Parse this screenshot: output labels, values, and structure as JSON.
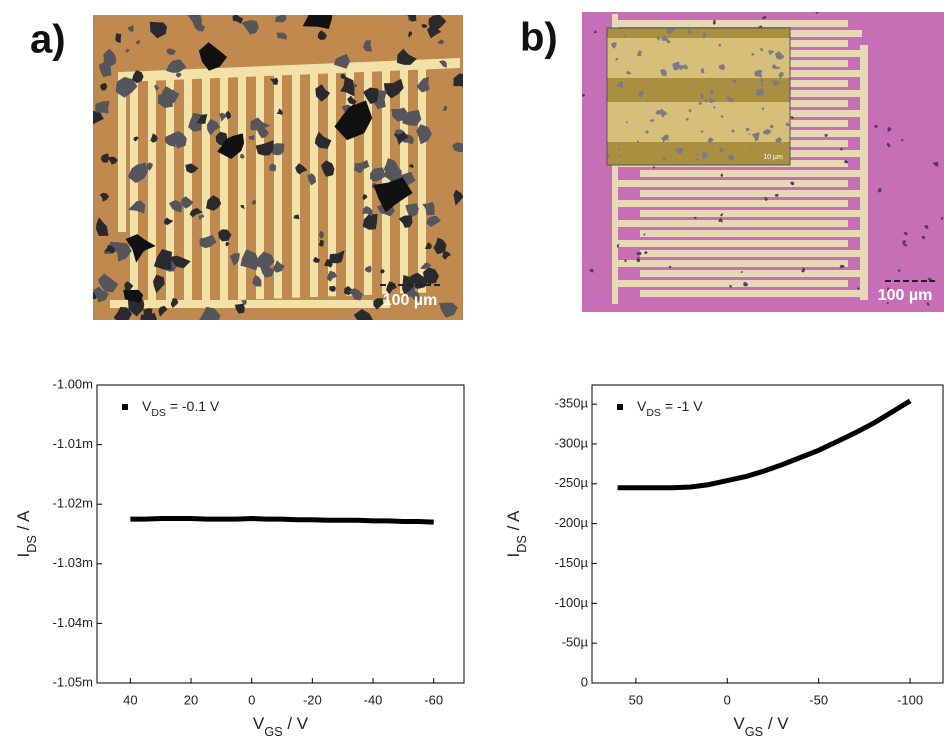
{
  "panels": [
    {
      "label": "a)",
      "scale_bar": "100 µm"
    },
    {
      "label": "b)",
      "scale_bar": "100 µm",
      "inset_scale_bar": "10 µm"
    }
  ],
  "chart_data": [
    {
      "type": "line",
      "x_label": "VGS / V",
      "y_label": "IDS / A",
      "xlim": [
        51,
        -70
      ],
      "xticks": [
        40,
        20,
        0,
        -20,
        -40,
        -60
      ],
      "ylim": [
        -0.00105,
        -0.001
      ],
      "yticks": [
        {
          "value": -0.001,
          "label": "-1.00m"
        },
        {
          "value": -0.00101,
          "label": "-1.01m"
        },
        {
          "value": -0.00102,
          "label": "-1.02m"
        },
        {
          "value": -0.00103,
          "label": "-1.03m"
        },
        {
          "value": -0.00104,
          "label": "-1.04m"
        },
        {
          "value": -0.00105,
          "label": "-1.05m"
        }
      ],
      "legend": "upper left",
      "x": [
        40,
        35,
        30,
        25,
        20,
        15,
        10,
        5,
        0,
        -5,
        -10,
        -15,
        -20,
        -25,
        -30,
        -35,
        -40,
        -45,
        -50,
        -55,
        -60
      ],
      "series": [
        {
          "name": "VDS = -0.1 V",
          "color": "#000000",
          "values": [
            -0.0010225,
            -0.0010225,
            -0.0010224,
            -0.0010224,
            -0.0010224,
            -0.0010225,
            -0.0010225,
            -0.0010225,
            -0.0010224,
            -0.0010225,
            -0.0010225,
            -0.0010226,
            -0.0010226,
            -0.0010227,
            -0.0010227,
            -0.0010227,
            -0.0010228,
            -0.0010228,
            -0.0010229,
            -0.0010229,
            -0.001023
          ]
        }
      ]
    },
    {
      "type": "line",
      "x_label": "VGS / V",
      "y_label": "IDS / A",
      "xlim": [
        74,
        -118
      ],
      "xticks": [
        50,
        0,
        -50,
        -100
      ],
      "ylim": [
        0,
        -0.000374
      ],
      "yticks": [
        0,
        {
          "value": -5e-05,
          "label": "-50µ"
        },
        {
          "value": -0.0001,
          "label": "-100µ"
        },
        {
          "value": -0.00015,
          "label": "-150µ"
        },
        {
          "value": -0.0002,
          "label": "-200µ"
        },
        {
          "value": -0.00025,
          "label": "-250µ"
        },
        {
          "value": -0.0003,
          "label": "-300µ"
        },
        {
          "value": -0.00035,
          "label": "-350µ"
        }
      ],
      "legend": "upper left",
      "x": [
        60,
        50,
        40,
        30,
        20,
        10,
        0,
        -10,
        -20,
        -30,
        -40,
        -50,
        -60,
        -70,
        -80,
        -90,
        -100
      ],
      "series": [
        {
          "name": "VDS = -1 V",
          "color": "#000000",
          "values": [
            -0.000245,
            -0.000245,
            -0.000245,
            -0.000245,
            -0.000246,
            -0.000249,
            -0.000254,
            -0.000259,
            -0.000266,
            -0.000274,
            -0.000283,
            -0.000292,
            -0.000303,
            -0.000314,
            -0.000326,
            -0.00034,
            -0.000354
          ]
        }
      ]
    }
  ]
}
